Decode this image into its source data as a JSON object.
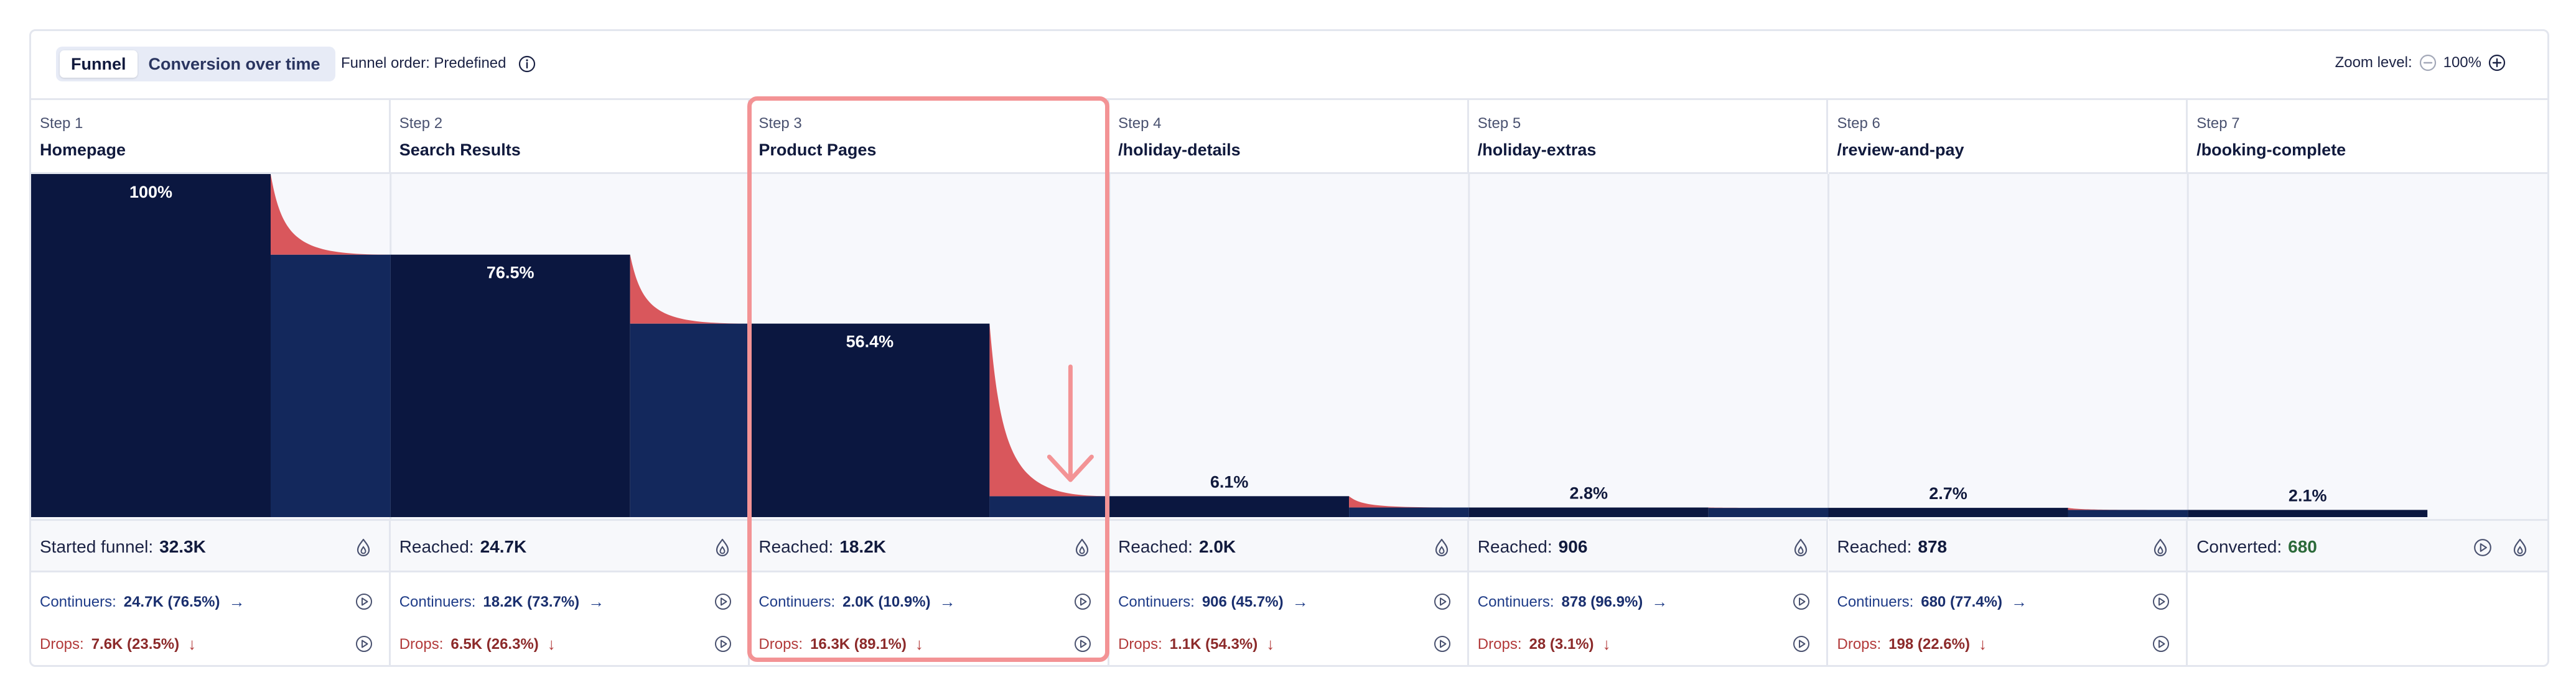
{
  "header": {
    "tabs": [
      {
        "label": "Funnel",
        "active": true
      },
      {
        "label": "Conversion over time",
        "active": false
      }
    ],
    "funnel_order_label": "Funnel order: Predefined",
    "zoom_label": "Zoom level:",
    "zoom_value": "100%"
  },
  "steps": [
    {
      "num": "Step 1",
      "name": "Homepage",
      "pct_label": "100%",
      "pct": 100,
      "reached_label": "Started funnel:",
      "reached": "32.3K",
      "continuers_label": "Continuers:",
      "continuers": "24.7K (76.5%)",
      "drops_label": "Drops:",
      "drops": "7.6K (23.5%)"
    },
    {
      "num": "Step 2",
      "name": "Search Results",
      "pct_label": "76.5%",
      "pct": 76.5,
      "reached_label": "Reached:",
      "reached": "24.7K",
      "continuers_label": "Continuers:",
      "continuers": "18.2K (73.7%)",
      "drops_label": "Drops:",
      "drops": "6.5K (26.3%)"
    },
    {
      "num": "Step 3",
      "name": "Product Pages",
      "pct_label": "56.4%",
      "pct": 56.4,
      "reached_label": "Reached:",
      "reached": "18.2K",
      "continuers_label": "Continuers:",
      "continuers": "2.0K (10.9%)",
      "drops_label": "Drops:",
      "drops": "16.3K (89.1%)"
    },
    {
      "num": "Step 4",
      "name": "/holiday-details",
      "pct_label": "6.1%",
      "pct": 6.1,
      "reached_label": "Reached:",
      "reached": "2.0K",
      "continuers_label": "Continuers:",
      "continuers": "906 (45.7%)",
      "drops_label": "Drops:",
      "drops": "1.1K (54.3%)"
    },
    {
      "num": "Step 5",
      "name": "/holiday-extras",
      "pct_label": "2.8%",
      "pct": 2.8,
      "reached_label": "Reached:",
      "reached": "906",
      "continuers_label": "Continuers:",
      "continuers": "878 (96.9%)",
      "drops_label": "Drops:",
      "drops": "28 (3.1%)"
    },
    {
      "num": "Step 6",
      "name": "/review-and-pay",
      "pct_label": "2.7%",
      "pct": 2.7,
      "reached_label": "Reached:",
      "reached": "878",
      "continuers_label": "Continuers:",
      "continuers": "680 (77.4%)",
      "drops_label": "Drops:",
      "drops": "198 (22.6%)"
    },
    {
      "num": "Step 7",
      "name": "/booking-complete",
      "pct_label": "2.1%",
      "pct": 2.1,
      "reached_label": "Converted:",
      "reached": "680"
    }
  ],
  "colors": {
    "bar": "#0b1740",
    "continuer": "#13285c",
    "drop": "#d9575c",
    "highlight": "#f39395",
    "chart_bg": "#f7f8fc"
  },
  "chart_data": {
    "type": "bar",
    "categories": [
      "Homepage",
      "Search Results",
      "Product Pages",
      "/holiday-details",
      "/holiday-extras",
      "/review-and-pay",
      "/booking-complete"
    ],
    "values": [
      100,
      76.5,
      56.4,
      6.1,
      2.8,
      2.7,
      2.1
    ],
    "ylim": [
      0,
      100
    ]
  }
}
